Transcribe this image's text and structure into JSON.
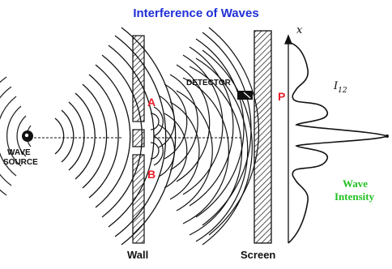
{
  "title": "Interference of Waves",
  "labels": {
    "source_line1": "WAVE",
    "source_line2": "SOURCE",
    "slit_a": "A",
    "slit_b": "B",
    "detector": "DETECTOR",
    "point_p": "P",
    "wall": "Wall",
    "screen": "Screen",
    "x_axis": "x",
    "intensity_symbol": "I",
    "intensity_subscript": "12",
    "wave_intensity_line1": "Wave",
    "wave_intensity_line2": "Intensity"
  },
  "colors": {
    "title": "#1f2fd6",
    "slit_labels": "#e8202a",
    "wave_intensity_label": "#21c021",
    "ink": "#111111"
  }
}
